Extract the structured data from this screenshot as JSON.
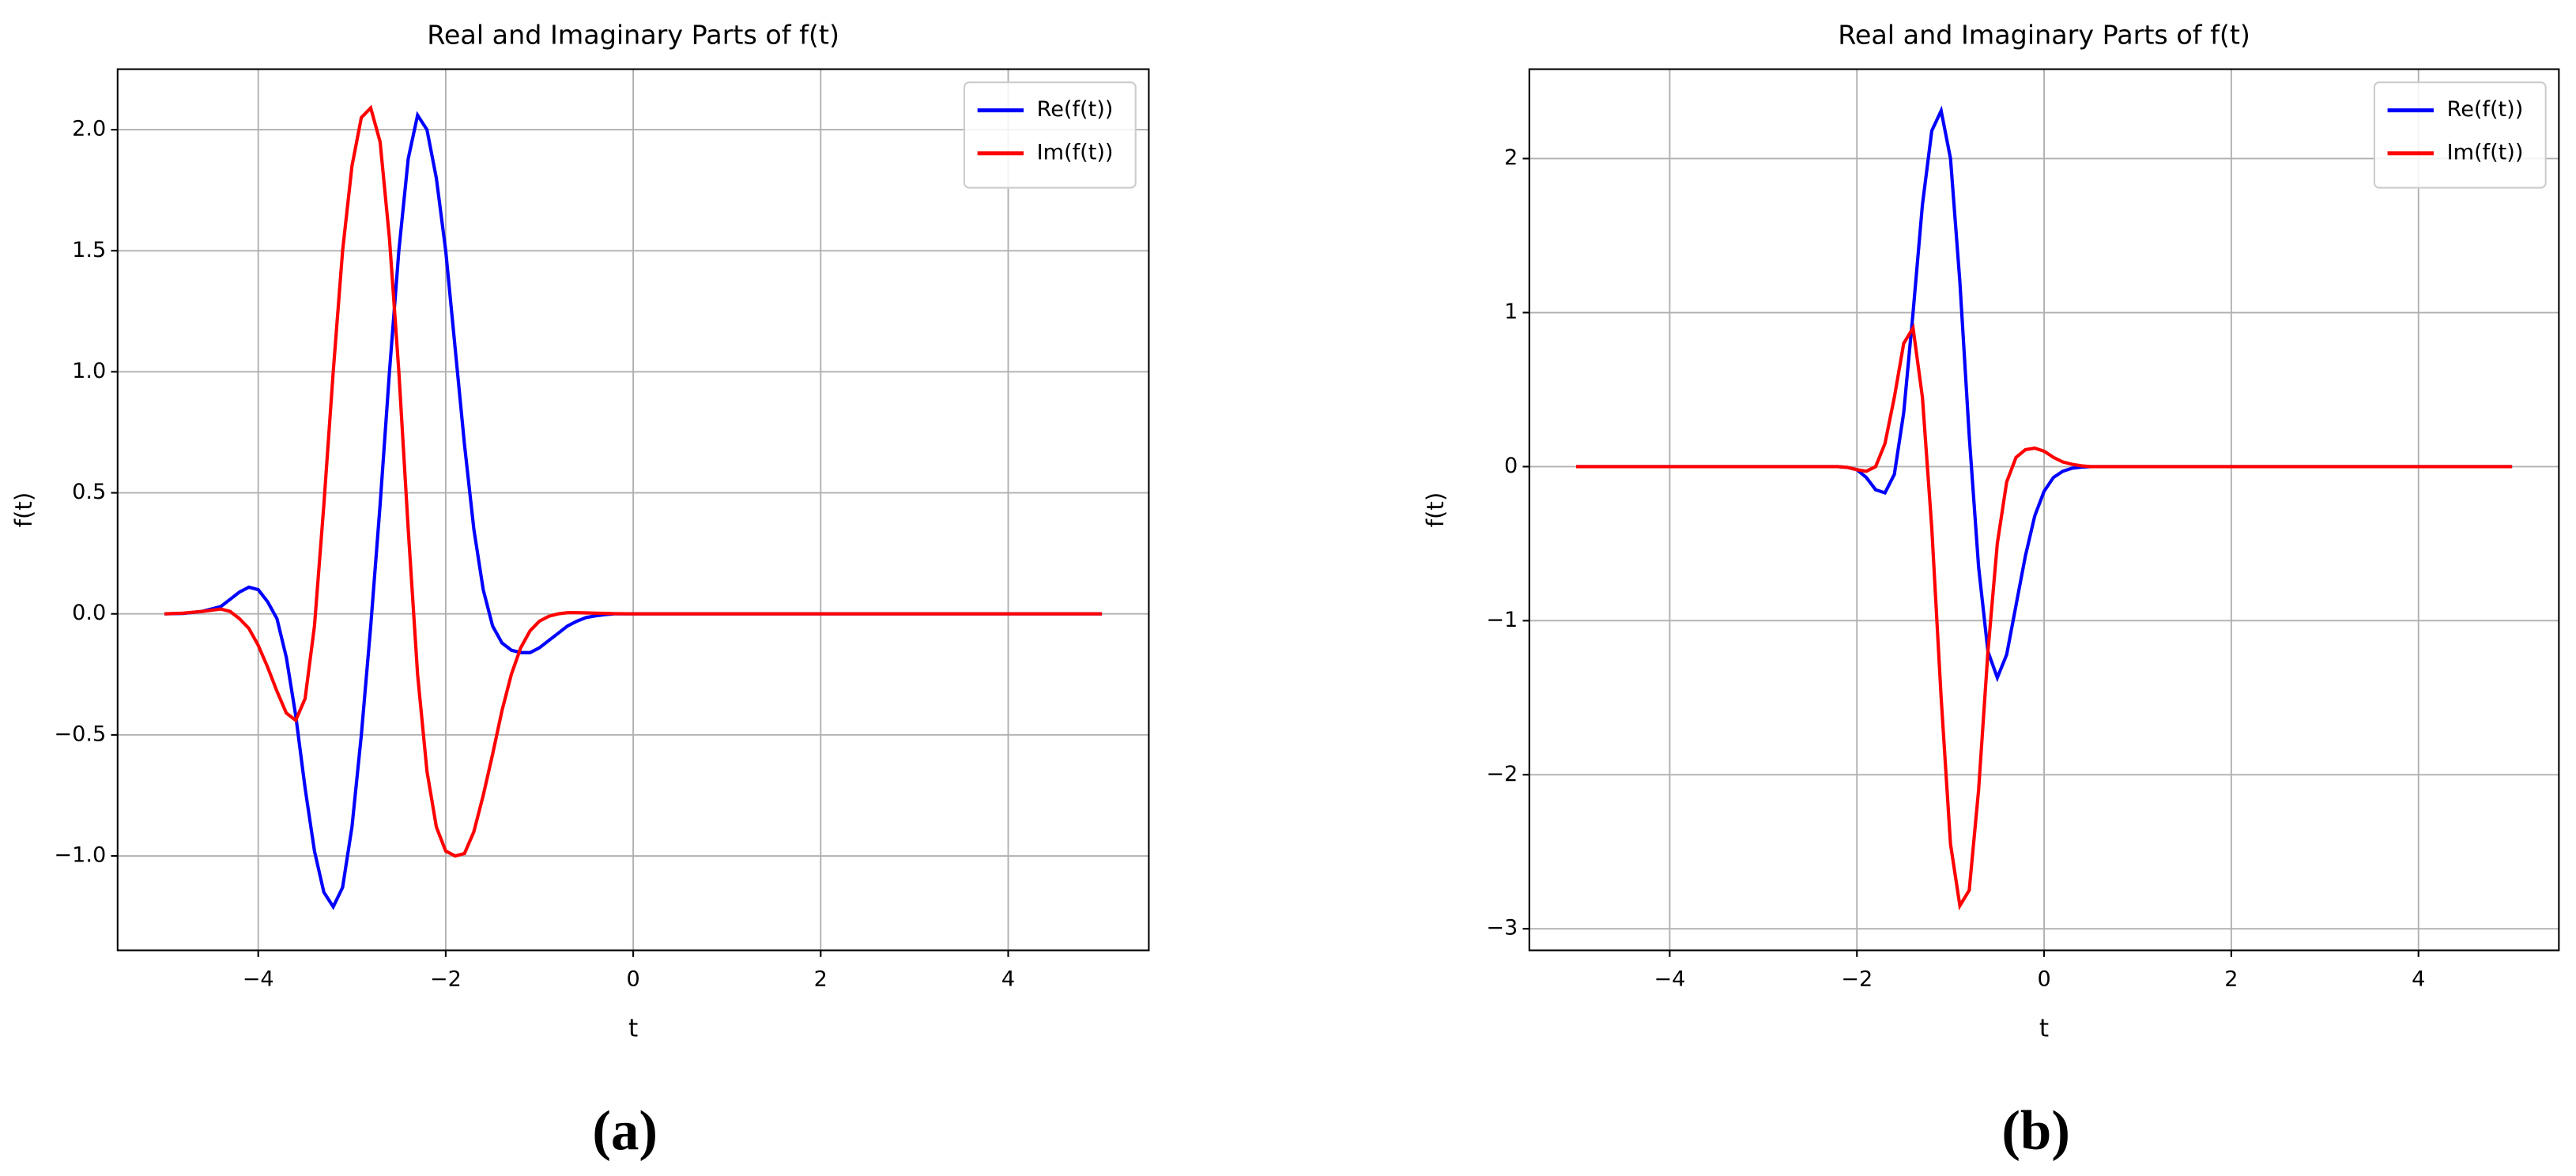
{
  "chart_data": [
    {
      "type": "line",
      "title": "Real and Imaginary Parts of f(t)",
      "xlabel": "t",
      "ylabel": "f(t)",
      "caption": "(a)",
      "x": [
        -5,
        -4.8,
        -4.6,
        -4.4,
        -4.3,
        -4.2,
        -4.1,
        -4.0,
        -3.9,
        -3.8,
        -3.7,
        -3.6,
        -3.5,
        -3.4,
        -3.3,
        -3.2,
        -3.1,
        -3.0,
        -2.9,
        -2.8,
        -2.7,
        -2.6,
        -2.5,
        -2.4,
        -2.3,
        -2.2,
        -2.1,
        -2.0,
        -1.9,
        -1.8,
        -1.7,
        -1.6,
        -1.5,
        -1.4,
        -1.3,
        -1.2,
        -1.1,
        -1.0,
        -0.9,
        -0.8,
        -0.7,
        -0.6,
        -0.5,
        -0.4,
        -0.3,
        -0.2,
        0,
        1,
        2,
        3,
        4,
        5
      ],
      "series": [
        {
          "name": "Re(f(t))",
          "color": "#0000ff",
          "values": [
            0,
            0.002,
            0.01,
            0.03,
            0.06,
            0.09,
            0.11,
            0.1,
            0.05,
            -0.02,
            -0.18,
            -0.42,
            -0.72,
            -0.98,
            -1.15,
            -1.21,
            -1.13,
            -0.88,
            -0.5,
            -0.05,
            0.45,
            1.0,
            1.5,
            1.88,
            2.06,
            2.0,
            1.8,
            1.5,
            1.1,
            0.7,
            0.35,
            0.1,
            -0.05,
            -0.12,
            -0.15,
            -0.16,
            -0.16,
            -0.14,
            -0.11,
            -0.08,
            -0.05,
            -0.03,
            -0.015,
            -0.008,
            -0.003,
            0,
            0,
            0,
            0,
            0,
            0,
            0
          ]
        },
        {
          "name": "Im(f(t))",
          "color": "#ff0000",
          "values": [
            0,
            0.003,
            0.01,
            0.02,
            0.01,
            -0.02,
            -0.06,
            -0.13,
            -0.22,
            -0.32,
            -0.41,
            -0.44,
            -0.35,
            -0.05,
            0.45,
            1.0,
            1.5,
            1.85,
            2.05,
            2.09,
            1.95,
            1.55,
            1.0,
            0.35,
            -0.25,
            -0.65,
            -0.88,
            -0.98,
            -1.0,
            -0.99,
            -0.9,
            -0.75,
            -0.58,
            -0.4,
            -0.25,
            -0.14,
            -0.07,
            -0.03,
            -0.01,
            0,
            0.005,
            0.005,
            0.004,
            0.003,
            0.002,
            0.001,
            0,
            0,
            0,
            0,
            0,
            0
          ]
        }
      ],
      "xlim": [
        -5.5,
        5.5
      ],
      "ylim": [
        -1.39,
        2.25
      ],
      "xticks": [
        {
          "value": -4,
          "label": "−4"
        },
        {
          "value": -2,
          "label": "−2"
        },
        0,
        2,
        4
      ],
      "yticks": [
        {
          "value": -1.0,
          "label": "−1.0"
        },
        {
          "value": -0.5,
          "label": "−0.5"
        },
        {
          "value": 0,
          "label": "0.0"
        },
        0.5,
        {
          "value": 1.0,
          "label": "1.0"
        },
        1.5,
        {
          "value": 2.0,
          "label": "2.0"
        }
      ],
      "grid": true,
      "legend": "upper right"
    },
    {
      "type": "line",
      "title": "Real and Imaginary Parts of f(t)",
      "xlabel": "t",
      "ylabel": "f(t)",
      "caption": "(b)",
      "x": [
        -5,
        -4,
        -3,
        -2.5,
        -2.2,
        -2.1,
        -2.0,
        -1.9,
        -1.8,
        -1.7,
        -1.6,
        -1.5,
        -1.4,
        -1.3,
        -1.2,
        -1.1,
        -1.0,
        -0.9,
        -0.8,
        -0.7,
        -0.6,
        -0.5,
        -0.4,
        -0.3,
        -0.2,
        -0.1,
        0,
        0.1,
        0.2,
        0.3,
        0.4,
        0.5,
        0.6,
        1,
        2,
        3,
        4,
        5
      ],
      "series": [
        {
          "name": "Re(f(t))",
          "color": "#0000ff",
          "values": [
            0,
            0,
            0,
            0,
            0,
            -0.005,
            -0.02,
            -0.07,
            -0.15,
            -0.17,
            -0.05,
            0.35,
            1.0,
            1.7,
            2.18,
            2.31,
            2.0,
            1.2,
            0.2,
            -0.65,
            -1.2,
            -1.37,
            -1.22,
            -0.9,
            -0.58,
            -0.32,
            -0.16,
            -0.07,
            -0.03,
            -0.01,
            -0.003,
            0,
            0,
            0,
            0,
            0,
            0,
            0
          ]
        },
        {
          "name": "Im(f(t))",
          "color": "#ff0000",
          "values": [
            0,
            0,
            0,
            0,
            0,
            -0.005,
            -0.02,
            -0.03,
            0.0,
            0.15,
            0.45,
            0.8,
            0.9,
            0.45,
            -0.4,
            -1.5,
            -2.45,
            -2.85,
            -2.75,
            -2.1,
            -1.2,
            -0.5,
            -0.1,
            0.06,
            0.11,
            0.12,
            0.1,
            0.06,
            0.03,
            0.015,
            0.005,
            0,
            0,
            0,
            0,
            0,
            0,
            0
          ]
        }
      ],
      "xlim": [
        -5.5,
        5.5
      ],
      "ylim": [
        -3.14,
        2.58
      ],
      "xticks": [
        {
          "value": -4,
          "label": "−4"
        },
        {
          "value": -2,
          "label": "−2"
        },
        0,
        2,
        4
      ],
      "yticks": [
        {
          "value": -3,
          "label": "−3"
        },
        {
          "value": -2,
          "label": "−2"
        },
        {
          "value": -1,
          "label": "−1"
        },
        0,
        1,
        2
      ],
      "grid": true,
      "legend": "upper right"
    }
  ]
}
